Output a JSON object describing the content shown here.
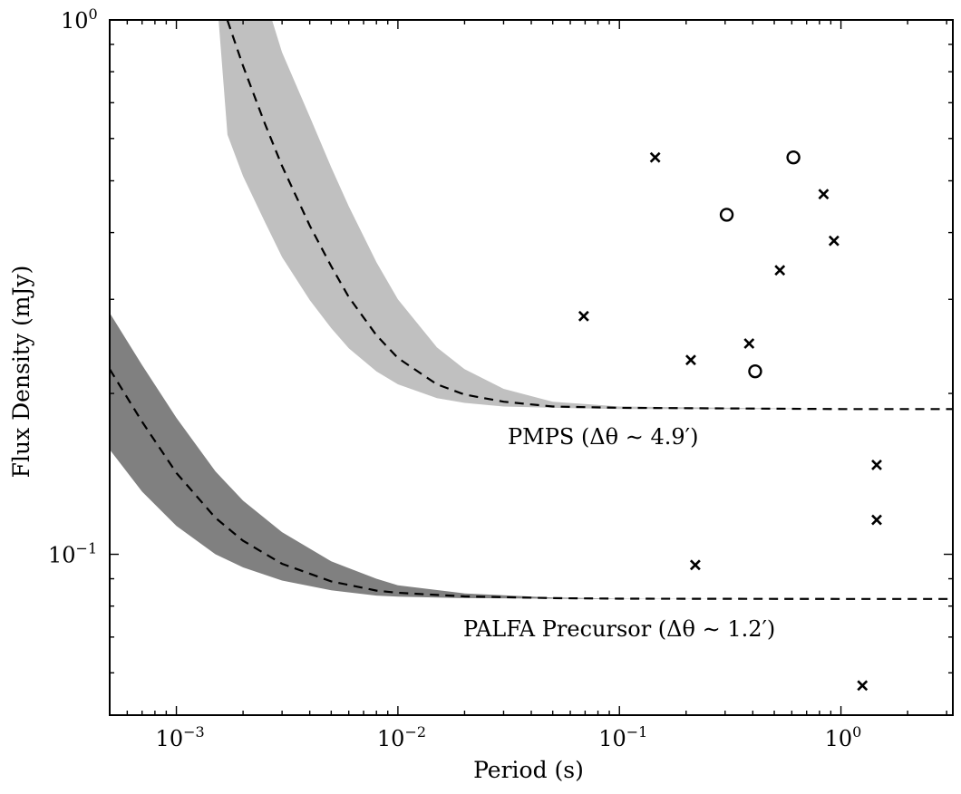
{
  "chart_data": {
    "type": "line",
    "title": "",
    "xlabel": "Period (s)",
    "ylabel": "Flux Density (mJy)",
    "xscale": "log",
    "yscale": "log",
    "xlim": [
      0.0005,
      3.2
    ],
    "ylim": [
      0.05,
      1.0
    ],
    "grid": false,
    "x_ticks": [
      {
        "base": "10",
        "exp": "−3",
        "value": 0.001
      },
      {
        "base": "10",
        "exp": "−2",
        "value": 0.01
      },
      {
        "base": "10",
        "exp": "−1",
        "value": 0.1
      },
      {
        "base": "10",
        "exp": "0",
        "value": 1.0
      }
    ],
    "y_ticks": [
      {
        "base": "10",
        "exp": "−1",
        "value": 0.1
      },
      {
        "base": "10",
        "exp": "0",
        "value": 1.0
      }
    ],
    "series": [
      {
        "name": "PMPS",
        "label": "PMPS (Δθ ∼ 4.9′)",
        "style": "dashed",
        "band_color": "#c0c0c0",
        "s_min": 0.187,
        "curve_x": [
          0.0017,
          0.002,
          0.0025,
          0.003,
          0.004,
          0.005,
          0.006,
          0.008,
          0.01,
          0.015,
          0.02,
          0.03,
          0.05,
          0.1,
          1.0,
          3.2
        ],
        "curve_y": [
          0.998,
          0.82,
          0.642,
          0.533,
          0.412,
          0.346,
          0.303,
          0.257,
          0.233,
          0.208,
          0.199,
          0.193,
          0.189,
          0.188,
          0.187,
          0.187
        ],
        "band_lower": [
          0.61,
          0.51,
          0.42,
          0.36,
          0.299,
          0.265,
          0.243,
          0.22,
          0.208,
          0.196,
          0.192,
          0.189,
          0.188,
          0.187,
          0.187,
          0.187
        ],
        "band_upper_x": [
          0.0027,
          0.003,
          0.004,
          0.005,
          0.006,
          0.008,
          0.01,
          0.015,
          0.02,
          0.03,
          0.05,
          0.1,
          1.0,
          3.2
        ],
        "band_upper": [
          1.0,
          0.87,
          0.659,
          0.53,
          0.448,
          0.352,
          0.3,
          0.244,
          0.222,
          0.204,
          0.193,
          0.189,
          0.187,
          0.187
        ],
        "band_left_x": [
          0.00155,
          0.0027
        ]
      },
      {
        "name": "PALFA Precursor",
        "label": "PALFA Precursor (Δθ ∼ 1.2′)",
        "style": "dashed",
        "band_color": "#808080",
        "s_min": 0.0825,
        "curve_x": [
          0.0005,
          0.0007,
          0.001,
          0.0015,
          0.002,
          0.003,
          0.005,
          0.008,
          0.01,
          0.02,
          0.05,
          0.1,
          1.0,
          3.2
        ],
        "curve_y": [
          0.222,
          0.177,
          0.142,
          0.117,
          0.106,
          0.096,
          0.089,
          0.0855,
          0.0847,
          0.0834,
          0.0828,
          0.0826,
          0.0825,
          0.0825
        ],
        "band_lower": [
          0.157,
          0.131,
          0.113,
          0.1,
          0.0945,
          0.0893,
          0.0856,
          0.0837,
          0.0833,
          0.0828,
          0.0826,
          0.0825,
          0.0825,
          0.0825
        ],
        "band_upper": [
          0.283,
          0.226,
          0.18,
          0.143,
          0.126,
          0.11,
          0.097,
          0.09,
          0.0875,
          0.0845,
          0.083,
          0.0826,
          0.0825,
          0.0825
        ]
      }
    ],
    "points_cross": [
      {
        "x": 0.145,
        "y": 0.553
      },
      {
        "x": 0.069,
        "y": 0.279
      },
      {
        "x": 0.21,
        "y": 0.231
      },
      {
        "x": 0.385,
        "y": 0.248
      },
      {
        "x": 0.53,
        "y": 0.34
      },
      {
        "x": 0.835,
        "y": 0.472
      },
      {
        "x": 0.93,
        "y": 0.386
      },
      {
        "x": 1.45,
        "y": 0.147
      },
      {
        "x": 1.45,
        "y": 0.116
      },
      {
        "x": 0.22,
        "y": 0.0955
      },
      {
        "x": 1.25,
        "y": 0.0568
      }
    ],
    "points_circle": [
      {
        "x": 0.305,
        "y": 0.432
      },
      {
        "x": 0.61,
        "y": 0.553
      },
      {
        "x": 0.41,
        "y": 0.22
      }
    ]
  }
}
